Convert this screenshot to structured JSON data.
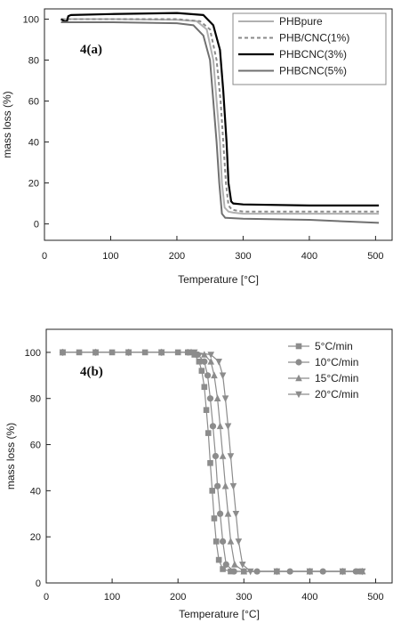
{
  "chart_data": [
    {
      "type": "line",
      "panel_label": "4(a)",
      "xlabel": "Temperature [°C]",
      "ylabel": "mass loss (%)",
      "xlim": [
        0,
        525
      ],
      "ylim": [
        -8,
        105
      ],
      "xticks": [
        0,
        100,
        200,
        300,
        400,
        500
      ],
      "yticks": [
        0,
        20,
        40,
        60,
        80,
        100
      ],
      "legend_position": "top-right",
      "grid": false,
      "series": [
        {
          "name": "PHBpure",
          "color": "#b0b0b0",
          "dash": "",
          "width": 2,
          "x": [
            25,
            100,
            200,
            230,
            245,
            255,
            260,
            265,
            268,
            272,
            278,
            285,
            300,
            400,
            505
          ],
          "y": [
            100,
            100,
            99.7,
            99,
            95,
            80,
            60,
            40,
            20,
            8,
            6,
            5.5,
            5,
            5,
            5
          ]
        },
        {
          "name": "PHB/CNC(1%)",
          "color": "#8a8a8a",
          "dash": "4 3",
          "width": 2,
          "x": [
            25,
            100,
            200,
            235,
            250,
            260,
            266,
            270,
            274,
            278,
            283,
            290,
            300,
            400,
            505
          ],
          "y": [
            100,
            100,
            100,
            99,
            95,
            80,
            60,
            40,
            20,
            9,
            7,
            6.5,
            6,
            6,
            6
          ]
        },
        {
          "name": "PHBCNC(3%)",
          "color": "#000000",
          "dash": "",
          "width": 2.2,
          "x": [
            25,
            30,
            34,
            36,
            40,
            100,
            200,
            240,
            255,
            265,
            270,
            275,
            278,
            282,
            285,
            300,
            400,
            505
          ],
          "y": [
            100,
            99,
            99,
            101.5,
            102,
            102.5,
            103,
            102,
            97,
            85,
            65,
            40,
            20,
            11,
            10,
            9.5,
            9,
            9
          ]
        },
        {
          "name": "PHBCNC(5%)",
          "color": "#707070",
          "dash": "",
          "width": 2,
          "x": [
            25,
            100,
            200,
            225,
            240,
            250,
            255,
            260,
            264,
            268,
            273,
            300,
            400,
            505
          ],
          "y": [
            98.5,
            98.5,
            98,
            97,
            92,
            80,
            60,
            40,
            20,
            5,
            3,
            2.5,
            2,
            0.5
          ]
        }
      ]
    },
    {
      "type": "scatter",
      "panel_label": "4(b)",
      "xlabel": "Temperature [°C]",
      "ylabel": "mass loss (%)",
      "xlim": [
        0,
        525
      ],
      "ylim": [
        0,
        110
      ],
      "xticks": [
        0,
        100,
        200,
        300,
        400,
        500
      ],
      "yticks": [
        0,
        20,
        40,
        60,
        80,
        100
      ],
      "legend_position": "top-right",
      "grid": false,
      "series": [
        {
          "name": "5°C/min",
          "marker": "square",
          "color": "#8c8c8c",
          "x": [
            25,
            50,
            75,
            100,
            125,
            150,
            175,
            200,
            215,
            225,
            232,
            236,
            240,
            243,
            246,
            249,
            252,
            255,
            258,
            262,
            268,
            280,
            300,
            350,
            400,
            450,
            475
          ],
          "y": [
            100,
            100,
            100,
            100,
            100,
            100,
            100,
            100,
            100,
            99,
            96,
            92,
            85,
            75,
            65,
            52,
            40,
            28,
            18,
            10,
            6,
            5,
            5,
            5,
            5,
            5,
            5
          ]
        },
        {
          "name": "10°C/min",
          "marker": "circle",
          "color": "#8c8c8c",
          "x": [
            25,
            75,
            125,
            175,
            215,
            230,
            240,
            245,
            249,
            253,
            257,
            260,
            264,
            268,
            273,
            285,
            320,
            370,
            420,
            470
          ],
          "y": [
            100,
            100,
            100,
            100,
            100,
            99,
            96,
            90,
            80,
            68,
            55,
            42,
            30,
            18,
            8,
            5,
            5,
            5,
            5,
            5
          ]
        },
        {
          "name": "15°C/min",
          "marker": "triangle-up",
          "color": "#8c8c8c",
          "x": [
            25,
            75,
            125,
            175,
            220,
            240,
            250,
            255,
            260,
            264,
            268,
            272,
            276,
            280,
            286,
            300,
            350,
            400,
            450,
            480
          ],
          "y": [
            100,
            100,
            100,
            100,
            100,
            99,
            96,
            90,
            80,
            68,
            55,
            42,
            30,
            18,
            8,
            5,
            5,
            5,
            5,
            5
          ]
        },
        {
          "name": "20°C/min",
          "marker": "triangle-down",
          "color": "#8c8c8c",
          "x": [
            25,
            75,
            125,
            175,
            225,
            250,
            262,
            268,
            272,
            276,
            280,
            284,
            288,
            292,
            298,
            310,
            350,
            400,
            450,
            480
          ],
          "y": [
            100,
            100,
            100,
            100,
            100,
            99,
            96,
            90,
            80,
            68,
            55,
            42,
            30,
            18,
            8,
            5,
            5,
            5,
            5,
            5
          ]
        }
      ]
    }
  ]
}
